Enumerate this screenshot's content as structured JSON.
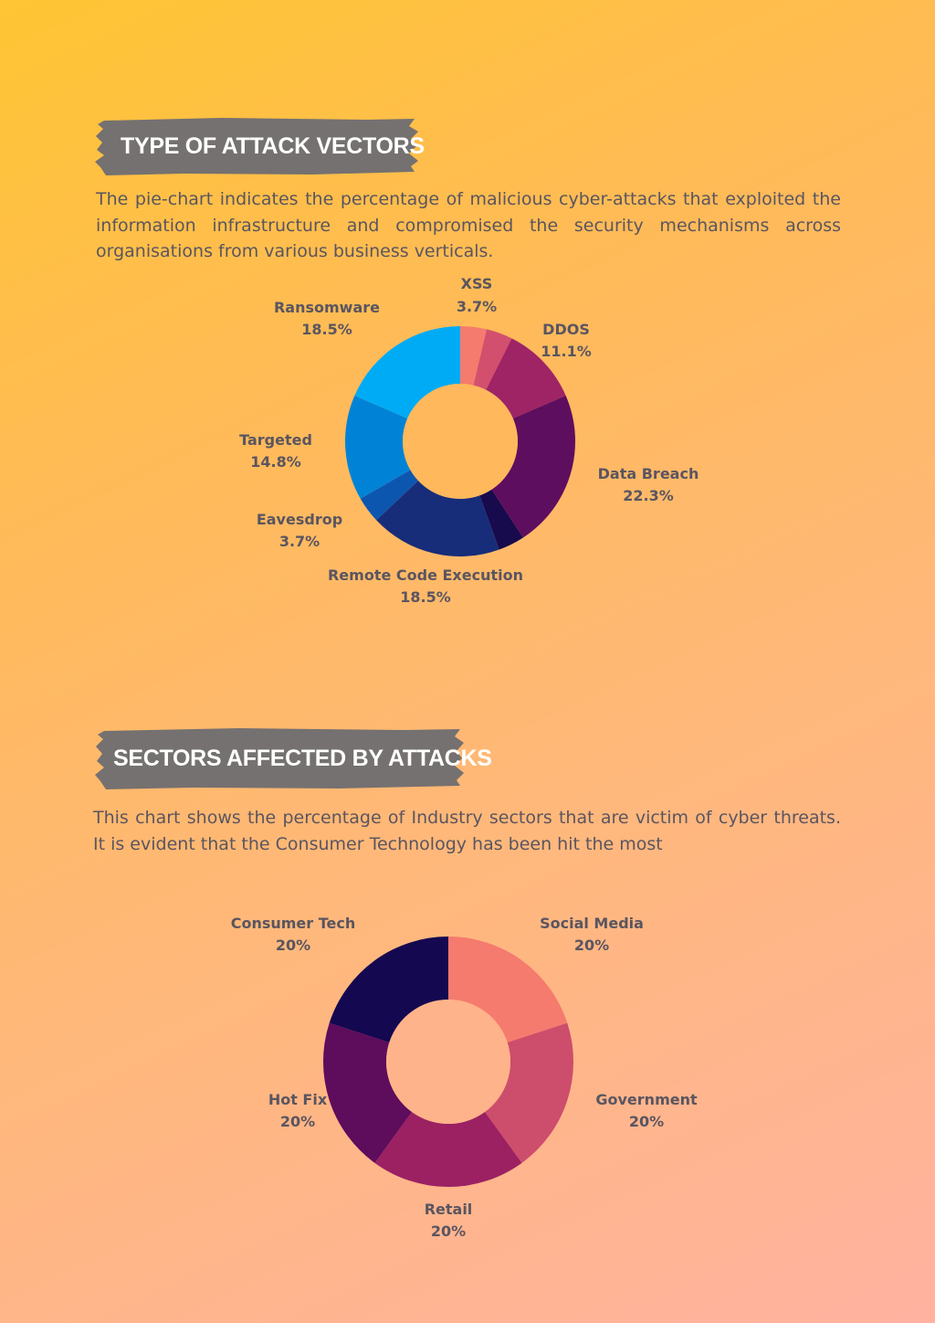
{
  "sections": [
    {
      "title": "TYPE OF ATTACK VECTORS",
      "description": "The pie-chart indicates the percentage of malicious cyber-attacks that exploited the information infrastructure and compromised the security mechanisms across organisations from various business verticals."
    },
    {
      "title": "SECTORS AFFECTED BY ATTACKS",
      "description": "This chart shows the percentage of Industry sectors that are victim of cyber threats. It is evident that the Consumer Technology has been hit the most"
    }
  ],
  "colors": {
    "banner": "#757170",
    "text": "#5a5560",
    "chart_center": "#ffb85c",
    "chart2_center": "#ffb38a"
  },
  "chart_data": [
    {
      "type": "pie",
      "donut": true,
      "title": "",
      "slices": [
        {
          "label": "XSS",
          "value": 3.7,
          "value_label": "3.7%",
          "color": "#f47b6e"
        },
        {
          "label": "",
          "value": 3.7,
          "value_label": "",
          "color": "#d34f6e"
        },
        {
          "label": "DDOS",
          "value": 11.1,
          "value_label": "11.1%",
          "color": "#9e2466"
        },
        {
          "label": "Data Breach",
          "value": 22.3,
          "value_label": "22.3%",
          "color": "#5e0e5e"
        },
        {
          "label": "",
          "value": 3.7,
          "value_label": "",
          "color": "#170a4d"
        },
        {
          "label": "Remote Code Execution",
          "value": 18.5,
          "value_label": "18.5%",
          "color": "#172d7a"
        },
        {
          "label": "Eavesdrop",
          "value": 3.7,
          "value_label": "3.7%",
          "color": "#0d56b0"
        },
        {
          "label": "Targeted",
          "value": 14.8,
          "value_label": "14.8%",
          "color": "#0083d6"
        },
        {
          "label": "Ransomware",
          "value": 18.5,
          "value_label": "18.5%",
          "color": "#00abf5"
        }
      ]
    },
    {
      "type": "pie",
      "donut": true,
      "title": "",
      "slices": [
        {
          "label": "Social Media",
          "value": 20,
          "value_label": "20%",
          "color": "#f47b6e"
        },
        {
          "label": "Government",
          "value": 20,
          "value_label": "20%",
          "color": "#cd4d6c"
        },
        {
          "label": "Retail",
          "value": 20,
          "value_label": "20%",
          "color": "#9b2163"
        },
        {
          "label": "Hot Fix",
          "value": 20,
          "value_label": "20%",
          "color": "#5e0c5c"
        },
        {
          "label": "Consumer Tech",
          "value": 20,
          "value_label": "20%",
          "color": "#140850"
        }
      ]
    }
  ]
}
